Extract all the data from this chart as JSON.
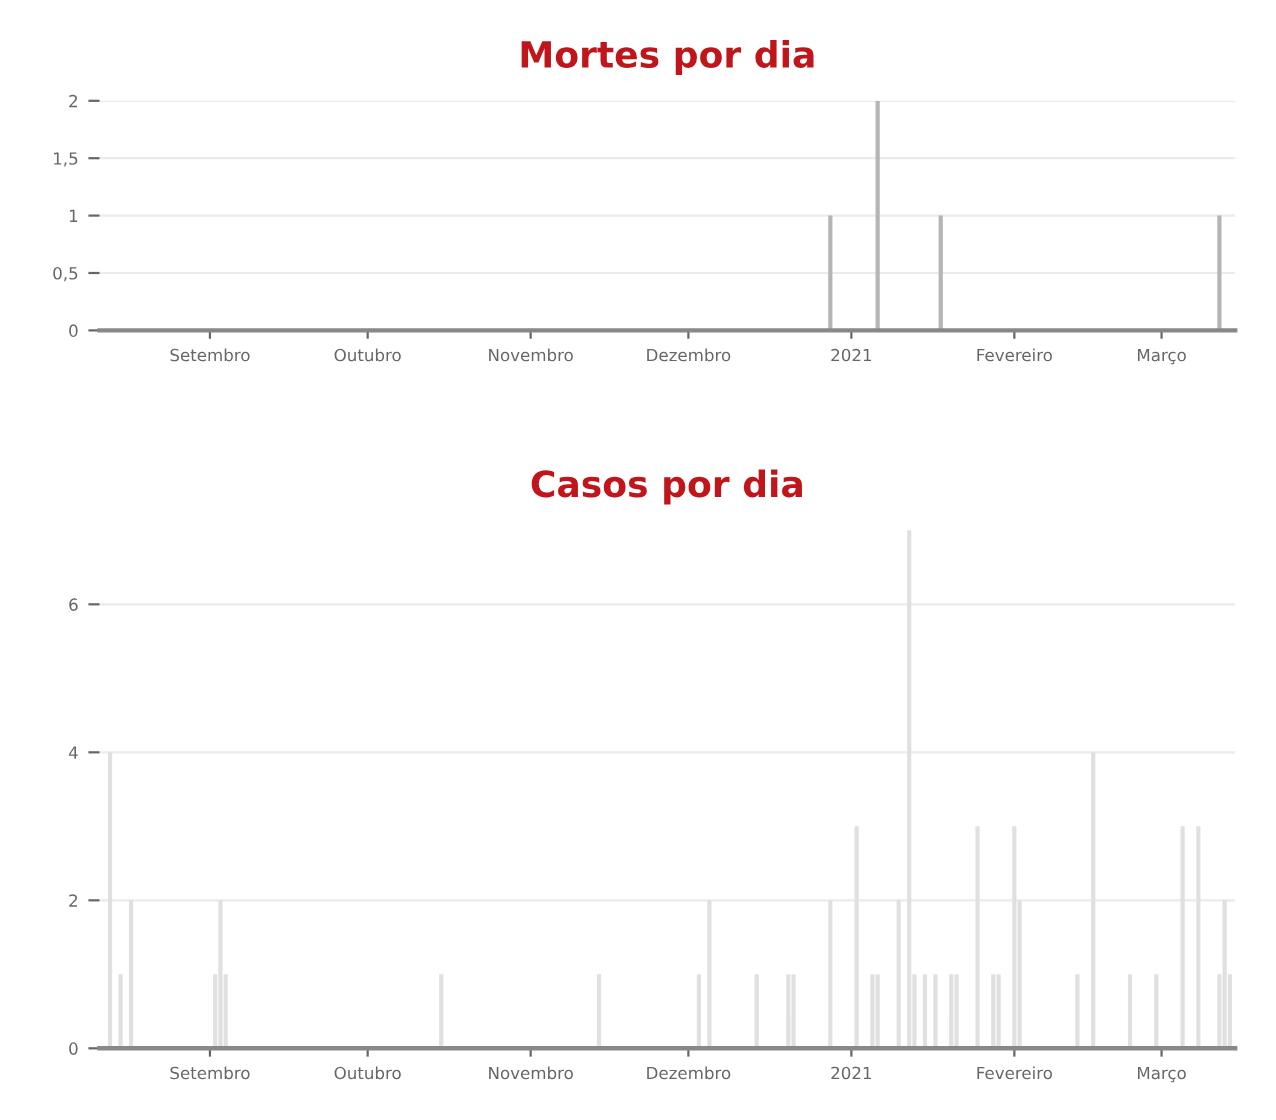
{
  "chart_data": [
    {
      "type": "bar",
      "title": "Mortes por dia",
      "x": [
        "2020-12-28",
        "2021-01-06",
        "2021-01-18",
        "2021-03-12"
      ],
      "values": [
        1,
        2,
        1,
        1
      ],
      "color": "#b5b5b5",
      "xlim": [
        "2020-08-11",
        "2021-03-15"
      ],
      "xticks": [
        {
          "value": "2020-09-01",
          "label": "Setembro"
        },
        {
          "value": "2020-10-01",
          "label": "Outubro"
        },
        {
          "value": "2020-11-01",
          "label": "Novembro"
        },
        {
          "value": "2020-12-01",
          "label": "Dezembro"
        },
        {
          "value": "2021-01-01",
          "label": "2021"
        },
        {
          "value": "2021-02-01",
          "label": "Fevereiro"
        },
        {
          "value": "2021-03-01",
          "label": "Março"
        }
      ],
      "ylim": [
        0,
        2
      ],
      "yticks": [
        0,
        {
          "value": 0.5,
          "label": "0,5"
        },
        1,
        {
          "value": 1.5,
          "label": "1,5"
        },
        2
      ],
      "grid": "y"
    },
    {
      "type": "bar",
      "title": "Casos por dia",
      "x": [
        "2020-08-13",
        "2020-08-15",
        "2020-08-17",
        "2020-09-02",
        "2020-09-03",
        "2020-09-04",
        "2020-10-15",
        "2020-11-14",
        "2020-12-03",
        "2020-12-05",
        "2020-12-14",
        "2020-12-20",
        "2020-12-21",
        "2020-12-28",
        "2021-01-02",
        "2021-01-05",
        "2021-01-06",
        "2021-01-10",
        "2021-01-12",
        "2021-01-13",
        "2021-01-15",
        "2021-01-17",
        "2021-01-20",
        "2021-01-21",
        "2021-01-25",
        "2021-01-28",
        "2021-01-29",
        "2021-02-01",
        "2021-02-02",
        "2021-02-13",
        "2021-02-16",
        "2021-02-23",
        "2021-02-28",
        "2021-03-05",
        "2021-03-08",
        "2021-03-12",
        "2021-03-13",
        "2021-03-14"
      ],
      "values": [
        4,
        1,
        2,
        1,
        2,
        1,
        1,
        1,
        1,
        2,
        1,
        1,
        1,
        2,
        3,
        1,
        1,
        2,
        7,
        1,
        1,
        1,
        1,
        1,
        3,
        1,
        1,
        3,
        2,
        1,
        4,
        1,
        1,
        3,
        3,
        1,
        2,
        1
      ],
      "color": "#e0e0e0",
      "xlim": [
        "2020-08-11",
        "2021-03-15"
      ],
      "xticks": [
        {
          "value": "2020-09-01",
          "label": "Setembro"
        },
        {
          "value": "2020-10-01",
          "label": "Outubro"
        },
        {
          "value": "2020-11-01",
          "label": "Novembro"
        },
        {
          "value": "2020-12-01",
          "label": "Dezembro"
        },
        {
          "value": "2021-01-01",
          "label": "2021"
        },
        {
          "value": "2021-02-01",
          "label": "Fevereiro"
        },
        {
          "value": "2021-03-01",
          "label": "Março"
        }
      ],
      "ylim": [
        0,
        7
      ],
      "yticks": [
        0,
        2,
        4,
        6
      ],
      "grid": "y"
    }
  ]
}
